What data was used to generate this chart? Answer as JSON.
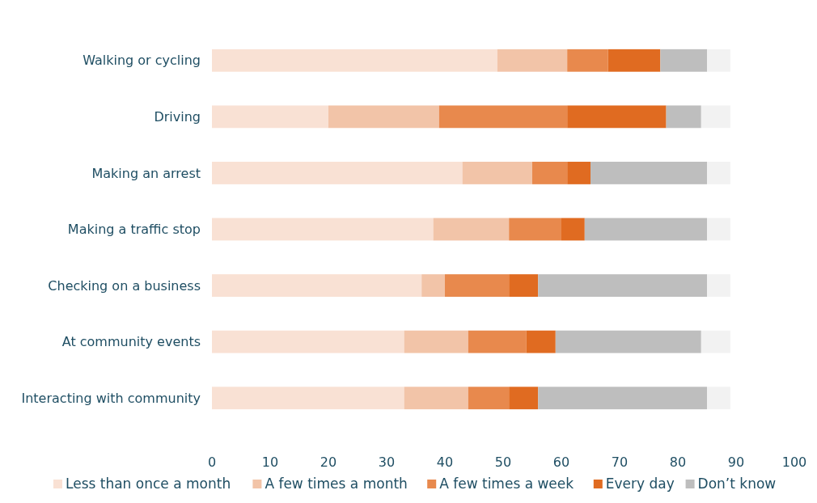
{
  "chart_data": {
    "type": "bar",
    "orientation": "horizontal",
    "stacked": true,
    "categories": [
      "Walking or cycling",
      "Driving",
      "Making an arrest",
      "Making a traffic stop",
      "Checking on a business",
      "At community events",
      "Interacting with community"
    ],
    "series": [
      {
        "name": "Less than once a month",
        "color": "#f9e1d4",
        "values": [
          49,
          20,
          43,
          38,
          36,
          33,
          33
        ]
      },
      {
        "name": "A few times a month",
        "color": "#f2c4a8",
        "values": [
          12,
          19,
          12,
          13,
          4,
          11,
          11
        ]
      },
      {
        "name": "A few times a week",
        "color": "#e8894d",
        "values": [
          7,
          22,
          6,
          9,
          11,
          10,
          7
        ]
      },
      {
        "name": "Every day",
        "color": "#e06b21",
        "values": [
          9,
          17,
          4,
          4,
          5,
          5,
          5
        ]
      },
      {
        "name": "Don’t know",
        "color": "#bebebe",
        "values": [
          8,
          6,
          20,
          21,
          29,
          25,
          29
        ]
      },
      {
        "color": "#f2f2f2",
        "values": [
          4,
          5,
          4,
          4,
          4,
          5,
          4
        ]
      }
    ],
    "xlim": [
      0,
      100
    ],
    "xticks": [
      0,
      10,
      20,
      30,
      40,
      50,
      60,
      70,
      80,
      90,
      100
    ],
    "legend": "bottom",
    "grid": false
  }
}
